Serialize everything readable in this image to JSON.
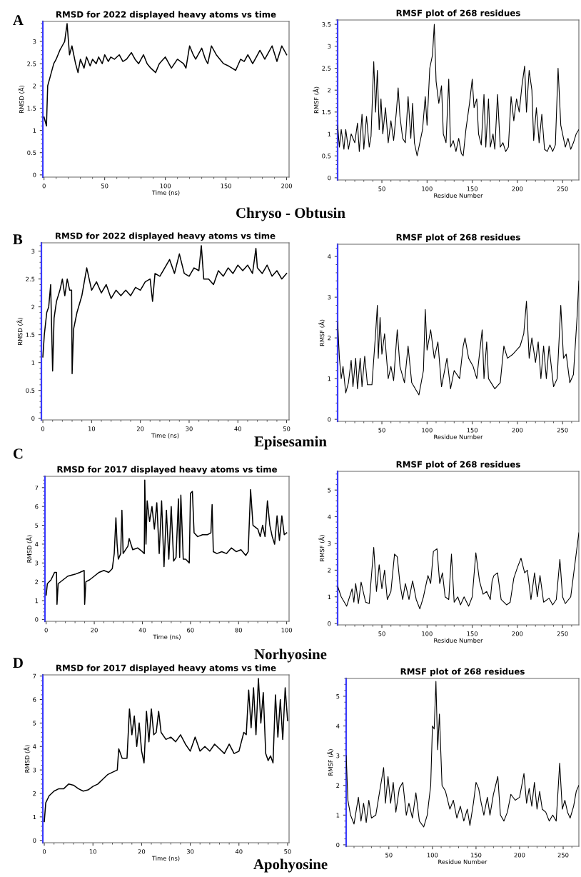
{
  "chart_data": [
    {
      "type": "line",
      "title": "RMSD for 2022 displayed heavy atoms vs time",
      "xlabel": "Time (ns)",
      "ylabel": "RMSD (Å)",
      "annotations": [
        "A",
        "Chryso - Obtusin"
      ],
      "xlim": [
        -1,
        202
      ],
      "ylim": [
        -0.05,
        3.45
      ],
      "xticks": [
        0,
        50,
        100,
        150,
        200
      ],
      "yticks": [
        0,
        0.5,
        1,
        1.5,
        2,
        2.5,
        3
      ],
      "color": "#000000",
      "x": [
        0,
        2,
        3,
        5,
        8,
        10,
        13,
        15,
        17,
        19,
        21,
        23,
        26,
        28,
        30,
        33,
        35,
        38,
        40,
        43,
        45,
        48,
        50,
        53,
        55,
        58,
        62,
        65,
        68,
        72,
        75,
        78,
        82,
        85,
        88,
        92,
        95,
        100,
        105,
        110,
        115,
        117,
        120,
        123,
        125,
        130,
        133,
        135,
        138,
        142,
        145,
        148,
        152,
        155,
        158,
        162,
        165,
        168,
        172,
        175,
        178,
        182,
        185,
        188,
        192,
        196,
        200
      ],
      "values": [
        1.3,
        1.1,
        2.0,
        2.2,
        2.5,
        2.6,
        2.8,
        2.9,
        3.0,
        3.4,
        2.7,
        2.9,
        2.5,
        2.3,
        2.6,
        2.4,
        2.65,
        2.45,
        2.6,
        2.5,
        2.65,
        2.5,
        2.7,
        2.55,
        2.65,
        2.6,
        2.7,
        2.55,
        2.6,
        2.75,
        2.6,
        2.5,
        2.7,
        2.5,
        2.4,
        2.3,
        2.5,
        2.65,
        2.4,
        2.6,
        2.5,
        2.4,
        2.9,
        2.7,
        2.6,
        2.85,
        2.6,
        2.5,
        2.9,
        2.7,
        2.6,
        2.5,
        2.45,
        2.4,
        2.35,
        2.6,
        2.55,
        2.7,
        2.5,
        2.65,
        2.8,
        2.6,
        2.75,
        2.9,
        2.55,
        2.9,
        2.7
      ]
    },
    {
      "type": "line",
      "title": "RMSF plot of 268 residues",
      "xlabel": "Residue Number",
      "ylabel": "RMSF (Å)",
      "xlim": [
        1,
        268
      ],
      "ylim": [
        -0.05,
        3.6
      ],
      "xticks": [
        50,
        100,
        150,
        200,
        250
      ],
      "yticks": [
        0,
        0.5,
        1,
        1.5,
        2,
        2.5,
        3,
        3.5
      ],
      "color": "#000000",
      "x": [
        1,
        3,
        5,
        8,
        10,
        13,
        16,
        20,
        23,
        25,
        28,
        30,
        33,
        36,
        38,
        41,
        43,
        45,
        47,
        49,
        51,
        54,
        57,
        60,
        63,
        66,
        68,
        70,
        73,
        76,
        79,
        82,
        84,
        86,
        89,
        92,
        95,
        98,
        100,
        103,
        106,
        108,
        110,
        113,
        116,
        118,
        121,
        124,
        126,
        129,
        132,
        135,
        138,
        140,
        143,
        147,
        150,
        152,
        155,
        157,
        160,
        163,
        165,
        168,
        170,
        173,
        175,
        178,
        181,
        184,
        187,
        190,
        193,
        196,
        199,
        202,
        205,
        208,
        210,
        213,
        216,
        218,
        221,
        224,
        227,
        230,
        233,
        236,
        239,
        242,
        245,
        248,
        250,
        253,
        256,
        259,
        262,
        265,
        268
      ],
      "values": [
        1.2,
        0.7,
        1.1,
        0.65,
        1.1,
        0.65,
        1.0,
        0.8,
        1.25,
        0.6,
        1.45,
        0.65,
        1.4,
        0.7,
        0.95,
        2.65,
        1.5,
        2.45,
        1.1,
        1.8,
        1.0,
        1.6,
        0.8,
        1.3,
        0.85,
        1.5,
        2.05,
        1.4,
        0.9,
        0.8,
        1.85,
        0.9,
        1.7,
        0.8,
        0.5,
        0.8,
        1.1,
        1.85,
        1.2,
        2.5,
        2.8,
        3.5,
        2.2,
        1.7,
        2.1,
        1.0,
        0.8,
        2.25,
        0.7,
        0.85,
        0.6,
        0.9,
        0.55,
        0.5,
        1.1,
        1.7,
        2.25,
        1.6,
        1.8,
        1.0,
        0.75,
        1.9,
        0.7,
        1.8,
        0.7,
        1.0,
        0.65,
        1.9,
        0.7,
        0.8,
        0.6,
        0.7,
        1.85,
        1.3,
        1.8,
        1.5,
        2.1,
        2.55,
        1.5,
        2.45,
        2.0,
        0.85,
        1.6,
        0.8,
        1.45,
        0.65,
        0.6,
        0.75,
        0.6,
        0.75,
        2.5,
        1.2,
        1.0,
        0.7,
        0.9,
        0.65,
        0.8,
        1.0,
        1.1
      ]
    },
    {
      "type": "line",
      "title": "RMSD for 2022 displayed heavy atoms vs time",
      "xlabel": "Time (ns)",
      "ylabel": "RMSD (Å)",
      "annotations": [
        "B",
        "Episesamin"
      ],
      "xlim": [
        -0.3,
        50.5
      ],
      "ylim": [
        -0.03,
        3.15
      ],
      "xticks": [
        0,
        10,
        20,
        30,
        40,
        50
      ],
      "yticks": [
        0,
        0.5,
        1,
        1.5,
        2,
        2.5,
        3
      ],
      "color": "#000000",
      "x": [
        0,
        0.3,
        0.8,
        1.2,
        1.6,
        2,
        2.3,
        2.8,
        3.5,
        4,
        4.5,
        5,
        5.5,
        5.9,
        6,
        6.3,
        7,
        8,
        8.6,
        9,
        10,
        11,
        12,
        13,
        14,
        15,
        16,
        17,
        18,
        19,
        20,
        21,
        22,
        22.5,
        23,
        24,
        25,
        26,
        27,
        28,
        29,
        30,
        31,
        32,
        32.5,
        33,
        34,
        35,
        36,
        37,
        38,
        39,
        40,
        41,
        42,
        43,
        43.7,
        44,
        45,
        46,
        47,
        48,
        49,
        50
      ],
      "values": [
        1.1,
        1.5,
        1.9,
        2.0,
        2.4,
        0.85,
        1.8,
        2.1,
        2.3,
        2.5,
        2.2,
        2.5,
        2.3,
        2.3,
        0.8,
        1.6,
        1.9,
        2.2,
        2.5,
        2.7,
        2.3,
        2.45,
        2.25,
        2.4,
        2.15,
        2.3,
        2.2,
        2.3,
        2.2,
        2.35,
        2.3,
        2.45,
        2.5,
        2.1,
        2.6,
        2.55,
        2.7,
        2.85,
        2.6,
        2.95,
        2.6,
        2.55,
        2.7,
        2.65,
        3.1,
        2.5,
        2.5,
        2.4,
        2.65,
        2.55,
        2.7,
        2.6,
        2.75,
        2.65,
        2.75,
        2.6,
        3.05,
        2.7,
        2.6,
        2.75,
        2.55,
        2.65,
        2.5,
        2.6
      ]
    },
    {
      "type": "line",
      "title": "RMSF plot of 268 residues",
      "xlabel": "Residue Number",
      "ylabel": "RMSF (Å)",
      "xlim": [
        1,
        268
      ],
      "ylim": [
        -0.05,
        4.3
      ],
      "xticks": [
        50,
        100,
        150,
        200,
        250
      ],
      "yticks": [
        0,
        1,
        2,
        3,
        4
      ],
      "color": "#000000",
      "x": [
        1,
        3,
        5,
        7,
        10,
        13,
        16,
        18,
        21,
        23,
        26,
        28,
        31,
        34,
        39,
        43,
        45,
        46,
        48,
        50,
        53,
        57,
        60,
        63,
        67,
        70,
        75,
        79,
        83,
        91,
        96,
        98,
        100,
        104,
        108,
        112,
        116,
        122,
        126,
        130,
        136,
        140,
        142,
        146,
        151,
        155,
        158,
        161,
        163,
        166,
        168,
        175,
        181,
        185,
        189,
        195,
        203,
        207,
        210,
        213,
        216,
        220,
        223,
        226,
        229,
        232,
        235,
        240,
        244,
        248,
        251,
        254,
        258,
        262,
        266,
        268
      ],
      "values": [
        2.4,
        1.5,
        1.0,
        1.3,
        0.65,
        0.9,
        1.45,
        0.8,
        1.5,
        0.75,
        1.5,
        0.8,
        1.55,
        0.85,
        0.85,
        2.1,
        2.8,
        1.5,
        2.5,
        1.6,
        2.1,
        1.0,
        1.3,
        0.95,
        2.2,
        1.3,
        0.9,
        1.8,
        0.9,
        0.6,
        1.2,
        2.7,
        1.7,
        2.2,
        1.5,
        1.9,
        0.8,
        1.5,
        0.75,
        1.2,
        1.0,
        1.8,
        2.0,
        1.5,
        1.3,
        1.0,
        1.6,
        2.2,
        1.0,
        1.9,
        1.0,
        0.75,
        0.9,
        1.8,
        1.5,
        1.6,
        1.8,
        2.1,
        2.9,
        1.5,
        2.0,
        1.4,
        1.9,
        1.0,
        1.8,
        1.0,
        1.8,
        0.8,
        1.0,
        2.8,
        1.5,
        1.6,
        0.9,
        1.1,
        2.5,
        3.4
      ]
    },
    {
      "type": "line",
      "title": "RMSD for 2017 displayed heavy atoms vs time",
      "xlabel": "Time (ns)",
      "ylabel": "RMSD (Å)",
      "annotations": [
        "C",
        "Norhyosine"
      ],
      "xlim": [
        -0.5,
        101
      ],
      "ylim": [
        -0.1,
        7.6
      ],
      "xticks": [
        0,
        20,
        40,
        60,
        80,
        100
      ],
      "yticks": [
        0,
        1,
        2,
        3,
        4,
        5,
        6,
        7
      ],
      "color": "#000000",
      "x": [
        0,
        0.5,
        2,
        3.5,
        4.3,
        4.5,
        5,
        7,
        9,
        12,
        14,
        15.8,
        16,
        16.5,
        18,
        20,
        22,
        24,
        26,
        27.5,
        28.3,
        29,
        29.5,
        30,
        31,
        31.5,
        32,
        34,
        34.5,
        36,
        38,
        40,
        40.8,
        41,
        41.5,
        42,
        43,
        44,
        45,
        46,
        47,
        48,
        49,
        50,
        51,
        52,
        53,
        54,
        55,
        55.5,
        56,
        57,
        58,
        59.5,
        60,
        60.8,
        61.5,
        63,
        65,
        67,
        68.5,
        69,
        69.5,
        71,
        73,
        75,
        77,
        79,
        81,
        83,
        84,
        85,
        86,
        88,
        89,
        90,
        91,
        92,
        93,
        94,
        95,
        96,
        97,
        98,
        99,
        100
      ],
      "values": [
        1.3,
        1.9,
        2.1,
        2.5,
        2.5,
        0.8,
        1.9,
        2.1,
        2.3,
        2.4,
        2.5,
        2.6,
        0.8,
        2.0,
        2.1,
        2.3,
        2.5,
        2.6,
        2.5,
        2.7,
        3.5,
        5.4,
        4.0,
        3.2,
        3.5,
        5.8,
        3.5,
        3.9,
        4.3,
        3.7,
        3.8,
        3.6,
        3.5,
        7.4,
        4.0,
        6.3,
        5.2,
        6.0,
        4.8,
        6.2,
        3.5,
        6.3,
        2.8,
        5.8,
        3.2,
        6.0,
        3.1,
        3.3,
        6.4,
        3.3,
        6.6,
        3.2,
        3.2,
        3.0,
        6.7,
        6.8,
        4.6,
        4.4,
        4.5,
        4.5,
        4.6,
        6.1,
        3.6,
        3.5,
        3.6,
        3.5,
        3.8,
        3.6,
        3.7,
        3.4,
        3.6,
        6.9,
        5.0,
        4.8,
        4.4,
        5.0,
        4.4,
        6.3,
        5.0,
        4.4,
        4.0,
        5.5,
        4.2,
        5.5,
        4.5,
        4.6
      ]
    },
    {
      "type": "line",
      "title": "RMSF plot of 268 residues",
      "xlabel": "Residue Number",
      "ylabel": "RMSF (Å)",
      "xlim": [
        1,
        268
      ],
      "ylim": [
        -0.05,
        5.7
      ],
      "xticks": [
        50,
        100,
        150,
        200,
        250
      ],
      "yticks": [
        0,
        1,
        2,
        3,
        4,
        5
      ],
      "color": "#000000",
      "x": [
        1,
        5,
        11,
        17,
        19,
        21,
        24,
        27,
        32,
        36,
        38,
        41,
        44,
        47,
        50,
        53,
        56,
        60,
        64,
        67,
        70,
        73,
        76,
        80,
        84,
        88,
        92,
        96,
        101,
        104,
        107,
        111,
        114,
        117,
        120,
        124,
        127,
        130,
        134,
        137,
        141,
        146,
        150,
        154,
        158,
        162,
        166,
        170,
        172,
        174,
        178,
        182,
        188,
        192,
        196,
        200,
        204,
        208,
        211,
        215,
        219,
        222,
        225,
        229,
        235,
        239,
        243,
        247,
        250,
        253,
        259,
        268
      ],
      "values": [
        1.4,
        1.0,
        0.65,
        1.3,
        0.8,
        1.5,
        0.75,
        1.55,
        0.8,
        0.75,
        1.6,
        2.85,
        1.2,
        2.2,
        1.3,
        2.0,
        0.9,
        1.2,
        2.6,
        2.5,
        1.5,
        0.9,
        1.5,
        0.9,
        1.6,
        0.9,
        0.55,
        1.0,
        1.8,
        1.5,
        2.7,
        2.8,
        1.5,
        1.9,
        1.0,
        0.9,
        2.6,
        0.8,
        1.0,
        0.7,
        1.0,
        0.65,
        1.0,
        2.65,
        1.6,
        1.1,
        1.2,
        0.9,
        1.6,
        1.8,
        1.9,
        0.9,
        0.7,
        0.8,
        1.7,
        2.1,
        2.45,
        1.9,
        2.0,
        0.9,
        1.9,
        1.0,
        1.8,
        0.8,
        0.95,
        0.7,
        0.9,
        2.4,
        1.0,
        0.75,
        1.0,
        3.4
      ]
    },
    {
      "type": "line",
      "title": "RMSD for 2017 displayed heavy atoms vs time",
      "xlabel": "Time (ns)",
      "ylabel": "RMSD (Å)",
      "annotations": [
        "D",
        "Apohyosine"
      ],
      "xlim": [
        -0.3,
        50.3
      ],
      "ylim": [
        -0.1,
        7.05
      ],
      "xticks": [
        0,
        10,
        20,
        30,
        40,
        50
      ],
      "yticks": [
        0,
        1,
        2,
        3,
        4,
        5,
        6,
        7
      ],
      "color": "#000000",
      "x": [
        0,
        0.3,
        1,
        2,
        3,
        4,
        5,
        6,
        7,
        8,
        9,
        10,
        11,
        12,
        13,
        14,
        15,
        15.3,
        16,
        17,
        17.5,
        18,
        18.5,
        19,
        19.5,
        20,
        20.5,
        21,
        21.5,
        22,
        22.5,
        23,
        23.5,
        24,
        25,
        26,
        27,
        28,
        29,
        30,
        31,
        32,
        33,
        34,
        35,
        36,
        37,
        38,
        39,
        40,
        40.5,
        41,
        41.5,
        42,
        42.5,
        43,
        43.5,
        44,
        44.5,
        45,
        45.5,
        46,
        46.5,
        47,
        47.5,
        48,
        48.5,
        49,
        49.5,
        50
      ],
      "values": [
        0.8,
        1.6,
        1.9,
        2.1,
        2.2,
        2.2,
        2.4,
        2.35,
        2.2,
        2.1,
        2.15,
        2.3,
        2.4,
        2.6,
        2.8,
        2.9,
        3.0,
        3.9,
        3.5,
        3.5,
        5.6,
        4.5,
        5.3,
        4.0,
        5.0,
        3.8,
        3.3,
        5.5,
        4.2,
        5.6,
        4.5,
        4.6,
        5.5,
        4.6,
        4.3,
        4.4,
        4.2,
        4.5,
        4.1,
        3.8,
        4.4,
        3.8,
        4.0,
        3.8,
        4.1,
        3.9,
        3.7,
        4.1,
        3.7,
        3.8,
        4.2,
        4.6,
        4.5,
        6.4,
        4.8,
        6.5,
        4.5,
        6.9,
        5.0,
        6.3,
        3.7,
        3.4,
        3.6,
        3.3,
        6.2,
        4.4,
        6.0,
        4.3,
        6.5,
        5.1
      ]
    },
    {
      "type": "line",
      "title": "RMSF plot of 268 residues",
      "xlabel": "Residue Number",
      "ylabel": "RMSF (Å)",
      "xlim": [
        1,
        268
      ],
      "ylim": [
        -0.05,
        5.6
      ],
      "xticks": [
        50,
        100,
        150,
        200,
        250
      ],
      "yticks": [
        0,
        1,
        2,
        3,
        4,
        5
      ],
      "color": "#000000",
      "x": [
        1,
        3,
        6,
        10,
        15,
        18,
        21,
        24,
        27,
        30,
        35,
        40,
        44,
        46,
        49,
        52,
        55,
        58,
        62,
        66,
        70,
        73,
        77,
        81,
        85,
        90,
        94,
        98,
        100,
        102,
        104,
        106,
        108,
        111,
        115,
        120,
        124,
        128,
        132,
        136,
        140,
        143,
        147,
        150,
        153,
        156,
        159,
        163,
        166,
        170,
        175,
        178,
        182,
        186,
        190,
        195,
        200,
        205,
        208,
        211,
        214,
        217,
        220,
        223,
        226,
        230,
        234,
        238,
        242,
        246,
        249,
        252,
        255,
        258,
        262,
        265,
        268
      ],
      "values": [
        3.0,
        1.5,
        1.0,
        0.7,
        1.6,
        0.8,
        1.4,
        0.75,
        1.5,
        0.9,
        1.0,
        1.9,
        2.6,
        1.4,
        2.3,
        1.4,
        2.1,
        1.1,
        1.9,
        2.1,
        1.0,
        1.4,
        0.9,
        1.75,
        0.8,
        0.6,
        1.0,
        2.0,
        4.0,
        3.9,
        5.5,
        3.2,
        4.4,
        2.0,
        1.8,
        1.2,
        1.5,
        0.9,
        1.3,
        0.8,
        1.2,
        0.65,
        1.4,
        2.1,
        1.9,
        1.4,
        1.0,
        1.6,
        1.0,
        1.7,
        2.3,
        1.0,
        0.8,
        1.1,
        1.7,
        1.5,
        1.6,
        2.4,
        1.4,
        1.9,
        1.3,
        2.1,
        1.2,
        1.8,
        1.2,
        1.1,
        0.8,
        1.0,
        0.8,
        2.75,
        1.2,
        1.5,
        1.1,
        0.9,
        1.3,
        1.8,
        2.0
      ]
    }
  ]
}
